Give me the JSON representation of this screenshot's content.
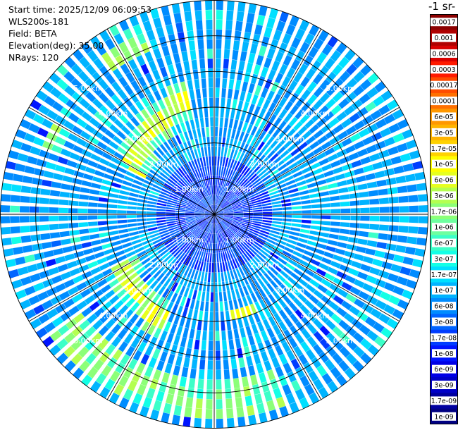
{
  "header": {
    "start_time": "Start time: 2025/12/09 06:09:53",
    "instrument": "WLS200s-181",
    "field": "Field: BETA",
    "elevation": "Elevation(deg): 35.00",
    "nrays": "NRays: 120"
  },
  "colorbar": {
    "title": "-1 sr-",
    "labels": [
      "0.0017",
      "0.001",
      "0.0006",
      "0.0003",
      "0.00017",
      "0.0001",
      "6e-05",
      "3e-05",
      "1.7e-05",
      "1e-05",
      "6e-06",
      "3e-06",
      "1.7e-06",
      "1e-06",
      "6e-07",
      "3e-07",
      "1.7e-07",
      "1e-07",
      "6e-08",
      "3e-08",
      "1.7e-08",
      "1e-08",
      "6e-09",
      "3e-09",
      "1.7e-09",
      "1e-09"
    ],
    "colors": [
      "#8b0000",
      "#b00000",
      "#d80000",
      "#ff1a00",
      "#ff4c00",
      "#ff7000",
      "#ff9800",
      "#ffb400",
      "#ffd200",
      "#ffff00",
      "#e6ff20",
      "#b4ff50",
      "#8cff78",
      "#6effa0",
      "#3cffc8",
      "#14ffe6",
      "#00e0ff",
      "#00b4ff",
      "#008cff",
      "#0064ff",
      "#003cff",
      "#0014ff",
      "#0000e6",
      "#0000c8",
      "#0000a0",
      "#000082"
    ]
  },
  "chart_data": {
    "type": "heatmap",
    "projection": "polar (PPI)",
    "field": "BETA",
    "elevation_deg": 35.0,
    "n_rays": 120,
    "max_range_km": 6.0,
    "range_ring_labels": [
      "1.00km",
      "2.00km",
      "3.00km",
      "4.00km",
      "5.00km"
    ],
    "range_rings_km": [
      1,
      2,
      3,
      4,
      5
    ],
    "background_level": "1e-07 to 3e-08 (blue/cyan)",
    "features": [
      {
        "name": "north-west arc",
        "azimuth_deg": [
          300,
          345
        ],
        "range_km": [
          2.5,
          3.3
        ],
        "level": "1e-05 (yellow)"
      },
      {
        "name": "south-west arc",
        "azimuth_deg": [
          205,
          240
        ],
        "range_km": [
          2.8,
          3.4
        ],
        "level": "1e-05 (yellow)"
      },
      {
        "name": "outer south band",
        "azimuth_deg": [
          170,
          230
        ],
        "range_km": [
          4.6,
          5.6
        ],
        "level": "1e-06 (green)"
      }
    ]
  }
}
